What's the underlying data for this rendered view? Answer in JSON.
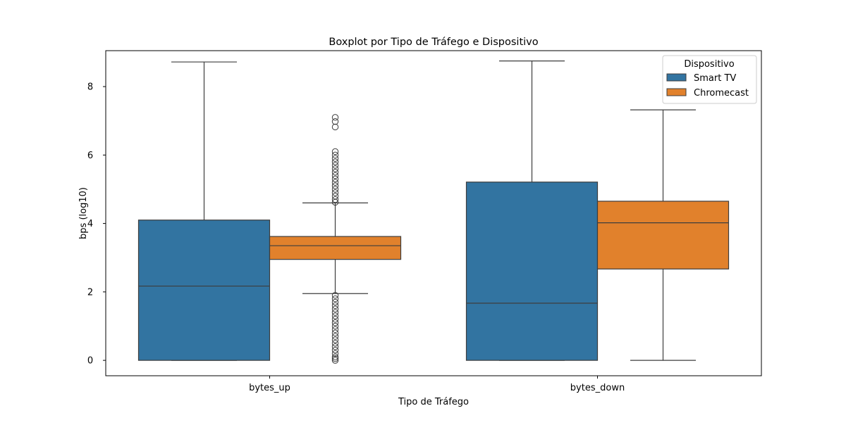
{
  "chart_data": {
    "type": "boxplot",
    "title": "Boxplot por Tipo de Tráfego e Dispositivo",
    "xlabel": "Tipo de Tráfego",
    "ylabel": "bps (log10)",
    "ylim": [
      -0.45,
      9.05
    ],
    "yticks": [
      "0",
      "2",
      "4",
      "6",
      "8"
    ],
    "categories": [
      "bytes_up",
      "bytes_down"
    ],
    "grid": false,
    "legend": {
      "title": "Dispositivo",
      "placement": "top-right"
    },
    "series": [
      {
        "name": "Smart TV",
        "color": "#3274a1",
        "boxes": [
          {
            "category": "bytes_up",
            "whisker_low": 0.0,
            "q1": 0.0,
            "median": 2.17,
            "q3": 4.1,
            "whisker_high": 8.72,
            "outliers": []
          },
          {
            "category": "bytes_down",
            "whisker_low": 0.0,
            "q1": 0.0,
            "median": 1.67,
            "q3": 5.21,
            "whisker_high": 8.75,
            "outliers": []
          }
        ]
      },
      {
        "name": "Chromecast",
        "color": "#e1812c",
        "boxes": [
          {
            "category": "bytes_up",
            "whisker_low": 1.95,
            "q1": 2.95,
            "median": 3.35,
            "q3": 3.62,
            "whisker_high": 4.6,
            "outliers": [
              0.0,
              0.05,
              0.1,
              0.2,
              0.3,
              0.4,
              0.5,
              0.6,
              0.7,
              0.8,
              0.9,
              1.0,
              1.1,
              1.2,
              1.3,
              1.4,
              1.5,
              1.6,
              1.7,
              1.8,
              1.9,
              4.62,
              4.7,
              4.8,
              4.9,
              5.0,
              5.1,
              5.2,
              5.3,
              5.4,
              5.5,
              5.6,
              5.7,
              5.8,
              5.9,
              6.0,
              6.1,
              6.82,
              6.98,
              7.1
            ]
          },
          {
            "category": "bytes_down",
            "whisker_low": 0.0,
            "q1": 2.67,
            "median": 4.02,
            "q3": 4.65,
            "whisker_high": 7.32,
            "outliers": []
          }
        ]
      }
    ]
  }
}
